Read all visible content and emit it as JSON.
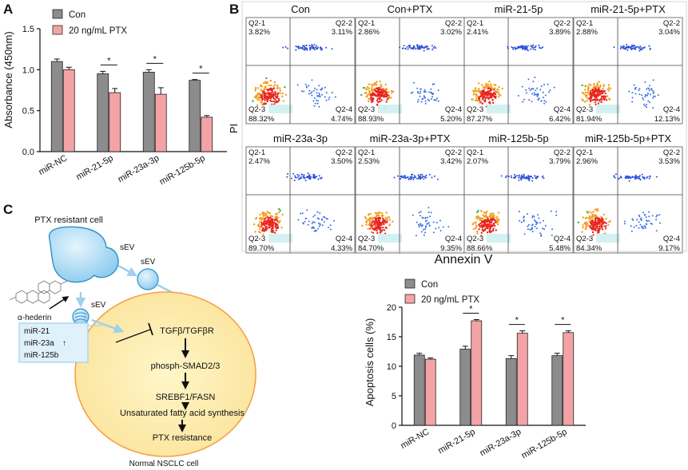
{
  "colors": {
    "con": "#8c8c8e",
    "ptx": "#f3a3a6",
    "cell": "#fbe9a8",
    "cellStroke": "#f2a24c",
    "sev": "#a8d6f0",
    "sevStroke": "#2f8fc9",
    "arrowBlue": "#9fd0ee",
    "boxBg": "#dff1fb"
  },
  "panelA": {
    "letter": "A",
    "chart_data": {
      "type": "bar",
      "title": "",
      "xlabel": "",
      "ylabel": "Absorbance (450nm)",
      "ylim": [
        0,
        1.5
      ],
      "yticks": [
        "0.0",
        "0.5",
        "1.0",
        "1.5"
      ],
      "categories": [
        "miR-NC",
        "miR-21-5p",
        "miR-23a-3p",
        "miR-125b-5p"
      ],
      "series": [
        {
          "name": "Con",
          "values": [
            1.1,
            0.95,
            0.97,
            0.87
          ],
          "errors": [
            0.03,
            0.03,
            0.03,
            0.01
          ],
          "colorKey": "con"
        },
        {
          "name": "20 ng/mL PTX",
          "values": [
            1.0,
            0.72,
            0.7,
            0.42
          ],
          "errors": [
            0.03,
            0.05,
            0.08,
            0.02
          ],
          "colorKey": "ptx"
        }
      ],
      "significance": [
        "",
        "*",
        "*",
        "*"
      ]
    }
  },
  "panelB": {
    "letter": "B",
    "xaxis": "Annexin V",
    "yaxis": "PI",
    "plots": [
      {
        "title": "Con",
        "q1": "Q2-1",
        "v1": "3.82%",
        "q2": "Q2-2",
        "v2": "3.11%",
        "q3": "Q2-3",
        "v3": "88.32%",
        "q4": "Q2-4",
        "v4": "4.74%"
      },
      {
        "title": "Con+PTX",
        "q1": "Q2-1",
        "v1": "2.86%",
        "q2": "Q2-2",
        "v2": "3.02%",
        "q3": "Q2-3",
        "v3": "88.93%",
        "q4": "Q2-4",
        "v4": "5.20%"
      },
      {
        "title": "miR-21-5p",
        "q1": "Q2-1",
        "v1": "2.41%",
        "q2": "Q2-2",
        "v2": "3.89%",
        "q3": "Q2-3",
        "v3": "87.27%",
        "q4": "Q2-4",
        "v4": "6.42%"
      },
      {
        "title": "miR-21-5p+PTX",
        "q1": "Q2-1",
        "v1": "2.88%",
        "q2": "Q2-2",
        "v2": "3.04%",
        "q3": "Q2-3",
        "v3": "81.94%",
        "q4": "Q2-4",
        "v4": "12.13%"
      },
      {
        "title": "miR-23a-3p",
        "q1": "Q2-1",
        "v1": "2.47%",
        "q2": "Q2-2",
        "v2": "3.50%",
        "q3": "Q2-3",
        "v3": "89.70%",
        "q4": "Q2-4",
        "v4": "4.33%"
      },
      {
        "title": "miR-23a-3p+PTX",
        "q1": "Q2-1",
        "v1": "2.53%",
        "q2": "Q2-2",
        "v2": "3.42%",
        "q3": "Q2-3",
        "v3": "84.70%",
        "q4": "Q2-4",
        "v4": "9.35%"
      },
      {
        "title": "miR-125b-5p",
        "q1": "Q2-1",
        "v1": "2.07%",
        "q2": "Q2-2",
        "v2": "3.79%",
        "q3": "Q2-3",
        "v3": "88.66%",
        "q4": "Q2-4",
        "v4": "5.48%"
      },
      {
        "title": "miR-125b-5p+PTX",
        "q1": "Q2-1",
        "v1": "2.96%",
        "q2": "Q2-2",
        "v2": "3.53%",
        "q3": "Q2-3",
        "v3": "84.34%",
        "q4": "Q2-4",
        "v4": "9.17%"
      }
    ]
  },
  "panelC": {
    "letter": "C",
    "resistant_cell": "PTX resistant cell",
    "sev": "sEV",
    "hederin": "α-hederin",
    "mirs": [
      "miR-21",
      "miR-23a",
      "miR-125b"
    ],
    "up_arrow": "↑",
    "pathway": [
      "TGFβ/TGFβR",
      "phosph-SMAD2/3",
      "SREBF1/FASN",
      "Unsaturated fatty acid synthesis",
      "PTX resistance"
    ],
    "normal_cell": "Normal NSCLC cell"
  },
  "panelD": {
    "chart_data": {
      "type": "bar",
      "title": "",
      "xlabel": "",
      "ylabel": "Apoptosis cells (%)",
      "ylim": [
        0,
        20
      ],
      "yticks": [
        "0",
        "5",
        "10",
        "15",
        "20"
      ],
      "categories": [
        "miR-NC",
        "miR-21-5p",
        "miR-23a-3p",
        "miR-125b-5p"
      ],
      "series": [
        {
          "name": "Con",
          "values": [
            11.9,
            12.9,
            11.3,
            11.8
          ],
          "errors": [
            0.3,
            0.5,
            0.5,
            0.4
          ],
          "colorKey": "con"
        },
        {
          "name": "20 ng/mL PTX",
          "values": [
            11.2,
            17.7,
            15.6,
            15.7
          ],
          "errors": [
            0.2,
            0.2,
            0.4,
            0.3
          ],
          "colorKey": "ptx"
        }
      ],
      "significance": [
        "",
        "*",
        "*",
        "*"
      ]
    }
  }
}
